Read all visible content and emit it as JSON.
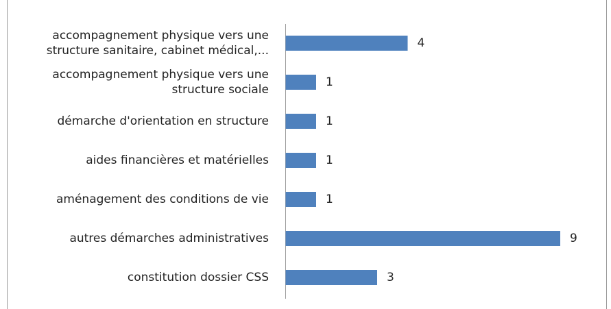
{
  "chart_data": {
    "type": "bar",
    "orientation": "horizontal",
    "categories": [
      "accompagnement physique vers une structure sanitaire, cabinet médical,...",
      "accompagnement physique vers une structure sociale",
      "démarche d'orientation en structure",
      "aides financières et matérielles",
      "aménagement des conditions de vie",
      "autres démarches administratives",
      "constitution dossier CSS"
    ],
    "values": [
      4,
      1,
      1,
      1,
      1,
      9,
      3
    ],
    "color": "#4f81bd",
    "xlim": [
      0,
      9
    ]
  }
}
